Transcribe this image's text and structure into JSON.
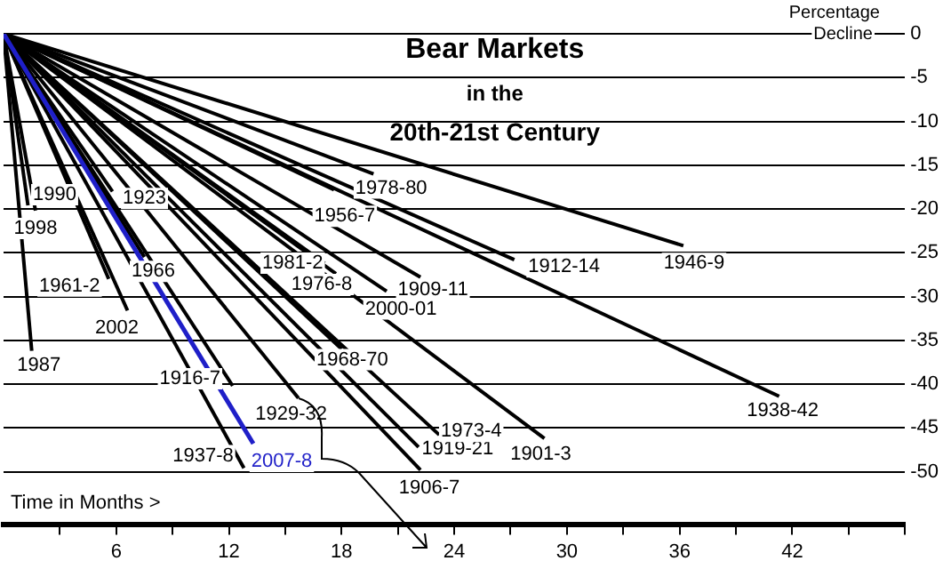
{
  "chart_data": {
    "type": "line",
    "title": "Bear Markets",
    "subtitle": "in the\n20th-21st Century",
    "xlabel": "Time in Months >",
    "ylabel": "Percentage\nDecline",
    "xlim": [
      0,
      48
    ],
    "ylim": [
      -56,
      0
    ],
    "xticks": [
      {
        "value": 3,
        "label": null
      },
      6,
      {
        "value": 9,
        "label": null
      },
      12,
      {
        "value": 15,
        "label": null
      },
      18,
      {
        "value": 21,
        "label": null
      },
      24,
      {
        "value": 27,
        "label": null
      },
      30,
      {
        "value": 33,
        "label": null
      },
      36,
      {
        "value": 39,
        "label": null
      },
      42,
      {
        "value": 45,
        "label": null
      },
      {
        "value": 48,
        "label": null
      }
    ],
    "yticks": [
      0,
      -5,
      -10,
      -15,
      -20,
      -25,
      -30,
      -35,
      -40,
      -45,
      -50
    ],
    "grid": "y",
    "legend": false,
    "marker": "none",
    "series": [
      {
        "name": "1990",
        "color": "#000000",
        "x": [
          0,
          1.3
        ],
        "values": [
          0,
          -19.6
        ]
      },
      {
        "name": "1998",
        "color": "#000000",
        "x": [
          0,
          1.7
        ],
        "values": [
          0,
          -20.2
        ]
      },
      {
        "name": "1923",
        "color": "#000000",
        "x": [
          0,
          5.8
        ],
        "values": [
          0,
          -18
        ]
      },
      {
        "name": "1961-2",
        "color": "#000000",
        "x": [
          0,
          5.6
        ],
        "values": [
          0,
          -28
        ]
      },
      {
        "name": "1966",
        "color": "#000000",
        "x": [
          0,
          7.5
        ],
        "values": [
          0,
          -25.5
        ]
      },
      {
        "name": "2002",
        "color": "#000000",
        "x": [
          0,
          6.6
        ],
        "values": [
          0,
          -31.6
        ]
      },
      {
        "name": "1987",
        "color": "#000000",
        "x": [
          0,
          1.5
        ],
        "values": [
          0,
          -36.2
        ]
      },
      {
        "name": "1916-7",
        "color": "#000000",
        "x": [
          0,
          12.2
        ],
        "values": [
          0,
          -40.2
        ]
      },
      {
        "name": "1937-8",
        "color": "#000000",
        "x": [
          0,
          12.8
        ],
        "values": [
          0,
          -49.6
        ]
      },
      {
        "name": "2007-8",
        "color": "#1f1fc8",
        "x": [
          0,
          13.3
        ],
        "values": [
          0,
          -46.8
        ]
      },
      {
        "name": "1929-32",
        "color": "#000000",
        "x": [
          0,
          15.7
        ],
        "values": [
          0,
          -41.6
        ]
      },
      {
        "name": "1968-70",
        "color": "#000000",
        "x": [
          0,
          18
        ],
        "values": [
          0,
          -36
        ]
      },
      {
        "name": "1906-7",
        "color": "#000000",
        "x": [
          0,
          22.2
        ],
        "values": [
          0,
          -49.8
        ]
      },
      {
        "name": "1919-21",
        "color": "#000000",
        "x": [
          0,
          22.1
        ],
        "values": [
          0,
          -47.2
        ]
      },
      {
        "name": "1973-4",
        "color": "#000000",
        "x": [
          0,
          23.2
        ],
        "values": [
          0,
          -45.8
        ]
      },
      {
        "name": "1901-3",
        "color": "#000000",
        "x": [
          0,
          28.8
        ],
        "values": [
          0,
          -46.2
        ]
      },
      {
        "name": "1938-42",
        "color": "#000000",
        "x": [
          0,
          41.3
        ],
        "values": [
          0,
          -41.4
        ]
      },
      {
        "name": "1946-9",
        "color": "#000000",
        "x": [
          0,
          36.2
        ],
        "values": [
          0,
          -24.2
        ]
      },
      {
        "name": "1912-14",
        "color": "#000000",
        "x": [
          0,
          27.2
        ],
        "values": [
          0,
          -25.8
        ]
      },
      {
        "name": "1909-11",
        "color": "#000000",
        "x": [
          0,
          22.2
        ],
        "values": [
          0,
          -27.8
        ]
      },
      {
        "name": "2000-01",
        "color": "#000000",
        "x": [
          0,
          20.4
        ],
        "values": [
          0,
          -29.4
        ]
      },
      {
        "name": "1976-8",
        "color": "#000000",
        "x": [
          0,
          17.7
        ],
        "values": [
          0,
          -27.4
        ]
      },
      {
        "name": "1981-2",
        "color": "#000000",
        "x": [
          0,
          17.1
        ],
        "values": [
          0,
          -26.2
        ]
      },
      {
        "name": "1956-7",
        "color": "#000000",
        "x": [
          0,
          17.6
        ],
        "values": [
          0,
          -17.8
        ]
      },
      {
        "name": "1978-80",
        "color": "#000000",
        "x": [
          0,
          19.7
        ],
        "values": [
          0,
          -16
        ]
      }
    ]
  }
}
